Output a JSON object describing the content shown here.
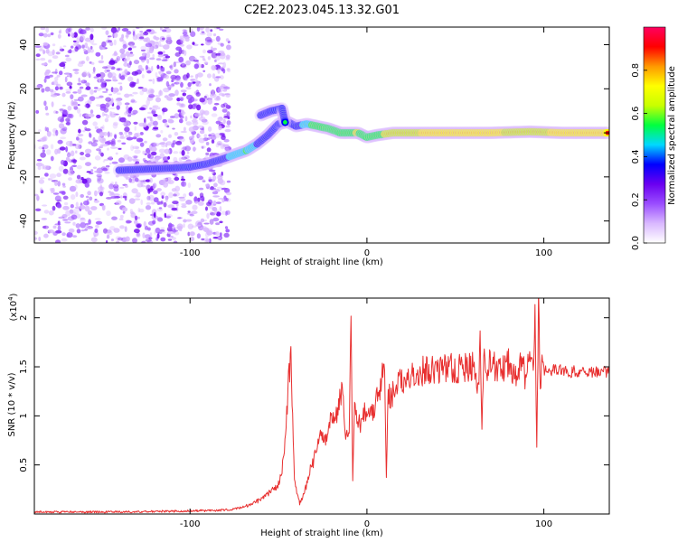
{
  "title": "C2E2.2023.045.13.32.G01",
  "chart_data": [
    {
      "type": "heatmap",
      "xlabel": "Height of straight line (km)",
      "ylabel": "Frequency (Hz)",
      "xlim": [
        -188,
        137
      ],
      "ylim": [
        -50,
        48
      ],
      "xticks": [
        -100,
        0,
        100
      ],
      "yticks": [
        -40,
        -20,
        0,
        20,
        40
      ],
      "grid": false,
      "colorbar": {
        "label": "Normalized spectral amplitude",
        "range": [
          0,
          1
        ],
        "ticks": [
          0.0,
          0.2,
          0.4,
          0.6,
          0.8
        ],
        "colors": [
          "#ffffff",
          "#d9b8ff",
          "#9a4dff",
          "#6a00f0",
          "#0000ff",
          "#00d8ff",
          "#00ff40",
          "#c8ff00",
          "#ffff00",
          "#ff9900",
          "#ff0000",
          "#ff0060"
        ]
      },
      "noise_region": {
        "x": [
          -188,
          -78
        ],
        "y": [
          -50,
          48
        ],
        "amplitude": [
          0.1,
          0.4
        ]
      },
      "ridge": [
        {
          "x": -140,
          "y": -17,
          "a": 0.25
        },
        {
          "x": -125,
          "y": -16.5,
          "a": 0.35
        },
        {
          "x": -110,
          "y": -16,
          "a": 0.4
        },
        {
          "x": -100,
          "y": -15.5,
          "a": 0.45
        },
        {
          "x": -90,
          "y": -14,
          "a": 0.5
        },
        {
          "x": -82,
          "y": -12,
          "a": 0.6
        },
        {
          "x": -75,
          "y": -10,
          "a": 0.7
        },
        {
          "x": -68,
          "y": -8,
          "a": 0.75
        },
        {
          "x": -62,
          "y": -5,
          "a": 0.65
        },
        {
          "x": -56,
          "y": -1,
          "a": 0.5
        },
        {
          "x": -50,
          "y": 4,
          "a": 0.45
        },
        {
          "x": -45,
          "y": 5,
          "a": 0.5
        },
        {
          "x": -40,
          "y": 3,
          "a": 0.6
        },
        {
          "x": -34,
          "y": 4,
          "a": 0.7
        },
        {
          "x": -28,
          "y": 3,
          "a": 0.8
        },
        {
          "x": -22,
          "y": 2,
          "a": 0.75
        },
        {
          "x": -15,
          "y": 0,
          "a": 0.8
        },
        {
          "x": -5,
          "y": 0,
          "a": 0.85
        },
        {
          "x": 0,
          "y": -2,
          "a": 0.75
        },
        {
          "x": 6,
          "y": -1,
          "a": 0.8
        },
        {
          "x": 15,
          "y": 0,
          "a": 0.9
        },
        {
          "x": 40,
          "y": 0,
          "a": 0.95
        },
        {
          "x": 70,
          "y": 0,
          "a": 0.95
        },
        {
          "x": 92,
          "y": 0.5,
          "a": 0.9
        },
        {
          "x": 110,
          "y": 0,
          "a": 0.95
        },
        {
          "x": 137,
          "y": 0,
          "a": 0.95
        }
      ],
      "upper_branch": [
        {
          "x": -60,
          "y": 8,
          "a": 0.55
        },
        {
          "x": -54,
          "y": 10,
          "a": 0.45
        },
        {
          "x": -48,
          "y": 11,
          "a": 0.5
        },
        {
          "x": -46,
          "y": 4,
          "a": 0.55
        }
      ]
    },
    {
      "type": "line",
      "xlabel": "Height of straight line (km)",
      "ylabel": "SNR (10 * v/v)",
      "yscale_label": "(x10",
      "yscale_exponent": "4",
      "yscale_close": ")",
      "xlim": [
        -188,
        137
      ],
      "ylim": [
        0,
        2.2
      ],
      "xticks": [
        -100,
        0,
        100
      ],
      "yticks": [
        0.5,
        1.0,
        1.5,
        2.0
      ],
      "grid": false,
      "color": "#e83030",
      "series": [
        {
          "x": [
            -188,
            -150,
            -100,
            -80,
            -75,
            -70,
            -65,
            -60,
            -55,
            -50,
            -48,
            -46,
            -44,
            -43,
            -42,
            -41,
            -40,
            -38,
            -36,
            -34,
            -32,
            -30,
            -28,
            -26,
            -24,
            -22,
            -20,
            -18,
            -16,
            -14,
            -12,
            -10,
            -9,
            -8,
            -7,
            -6,
            -4,
            -2,
            0,
            2,
            4,
            6,
            8,
            9,
            10,
            11,
            12,
            14,
            16,
            18,
            20,
            25,
            30,
            35,
            40,
            45,
            50,
            55,
            60,
            63,
            64,
            65,
            66,
            68,
            70,
            75,
            80,
            85,
            88,
            90,
            92,
            94,
            95,
            96,
            97,
            98,
            99,
            100,
            105,
            110,
            115,
            120,
            125,
            130,
            137
          ],
          "y": [
            0.02,
            0.02,
            0.03,
            0.04,
            0.05,
            0.07,
            0.1,
            0.15,
            0.22,
            0.3,
            0.45,
            0.8,
            1.45,
            1.6,
            1.0,
            0.4,
            0.25,
            0.1,
            0.2,
            0.3,
            0.45,
            0.55,
            0.7,
            0.8,
            0.75,
            0.85,
            1.0,
            0.95,
            1.1,
            1.3,
            0.75,
            0.9,
            2.0,
            0.35,
            1.05,
            1.0,
            0.9,
            1.05,
            1.0,
            1.1,
            1.05,
            1.2,
            1.3,
            1.55,
            1.35,
            0.35,
            1.2,
            1.2,
            1.3,
            1.35,
            1.35,
            1.42,
            1.45,
            1.47,
            1.48,
            1.5,
            1.47,
            1.49,
            1.5,
            1.25,
            1.75,
            0.95,
            1.6,
            1.45,
            1.55,
            1.45,
            1.55,
            1.4,
            1.6,
            1.3,
            1.7,
            1.5,
            2.2,
            0.65,
            2.2,
            1.2,
            1.5,
            1.45,
            1.47,
            1.47,
            1.45,
            1.46,
            1.45,
            1.45,
            1.45
          ]
        }
      ]
    }
  ]
}
